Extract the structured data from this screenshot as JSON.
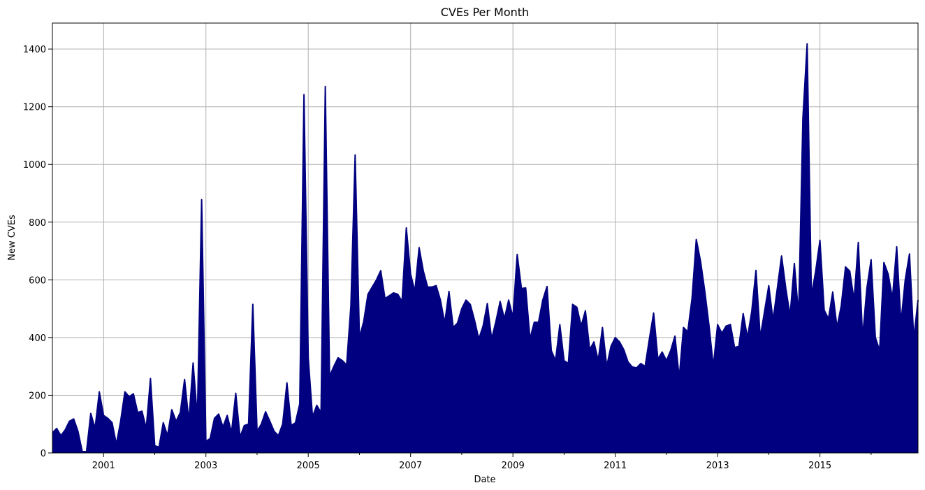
{
  "chart_data": {
    "type": "area",
    "title": "CVEs Per Month",
    "xlabel": "Date",
    "ylabel": "New CVEs",
    "x_start": "2000-01",
    "x_end": "2016-12",
    "ylim": [
      0,
      1490
    ],
    "grid": true,
    "legend": "none",
    "color": "#000080",
    "x_ticks": [
      {
        "value": "2001-01",
        "label": "2001"
      },
      {
        "value": "2003-01",
        "label": "2003"
      },
      {
        "value": "2005-01",
        "label": "2005"
      },
      {
        "value": "2007-01",
        "label": "2007"
      },
      {
        "value": "2009-01",
        "label": "2009"
      },
      {
        "value": "2011-01",
        "label": "2011"
      },
      {
        "value": "2013-01",
        "label": "2013"
      },
      {
        "value": "2015-01",
        "label": "2015"
      }
    ],
    "x_minor_ticks": [
      "2002-01",
      "2004-01",
      "2006-01",
      "2008-01",
      "2010-01",
      "2012-01",
      "2014-01",
      "2016-01"
    ],
    "y_ticks": [
      0,
      200,
      400,
      600,
      800,
      1000,
      1200,
      1400
    ],
    "values": [
      70,
      85,
      60,
      80,
      110,
      118,
      75,
      5,
      5,
      137,
      85,
      212,
      130,
      120,
      105,
      30,
      110,
      212,
      195,
      205,
      140,
      145,
      85,
      258,
      25,
      20,
      105,
      60,
      150,
      110,
      140,
      255,
      110,
      312,
      120,
      878,
      40,
      50,
      120,
      135,
      90,
      130,
      70,
      207,
      55,
      95,
      100,
      515,
      75,
      100,
      143,
      110,
      75,
      60,
      100,
      243,
      95,
      105,
      170,
      1242,
      330,
      125,
      165,
      140,
      1270,
      265,
      300,
      330,
      320,
      305,
      510,
      1033,
      400,
      455,
      550,
      575,
      600,
      632,
      535,
      545,
      555,
      550,
      525,
      780,
      620,
      560,
      712,
      630,
      575,
      575,
      580,
      530,
      450,
      560,
      435,
      450,
      500,
      530,
      515,
      460,
      395,
      440,
      518,
      395,
      455,
      525,
      465,
      530,
      470,
      688,
      570,
      572,
      395,
      453,
      453,
      530,
      577,
      355,
      320,
      445,
      320,
      310,
      515,
      505,
      440,
      493,
      358,
      385,
      320,
      435,
      300,
      370,
      400,
      385,
      358,
      315,
      298,
      295,
      310,
      300,
      395,
      485,
      325,
      350,
      320,
      355,
      405,
      260,
      435,
      420,
      535,
      740,
      665,
      560,
      440,
      300,
      445,
      415,
      440,
      445,
      365,
      370,
      483,
      400,
      490,
      633,
      400,
      490,
      580,
      460,
      570,
      683,
      570,
      475,
      657,
      475,
      1160,
      1418,
      545,
      630,
      737,
      495,
      465,
      558,
      435,
      510,
      645,
      630,
      530,
      730,
      400,
      570,
      670,
      400,
      355,
      660,
      620,
      535,
      715,
      450,
      600,
      690,
      395,
      530
    ]
  }
}
